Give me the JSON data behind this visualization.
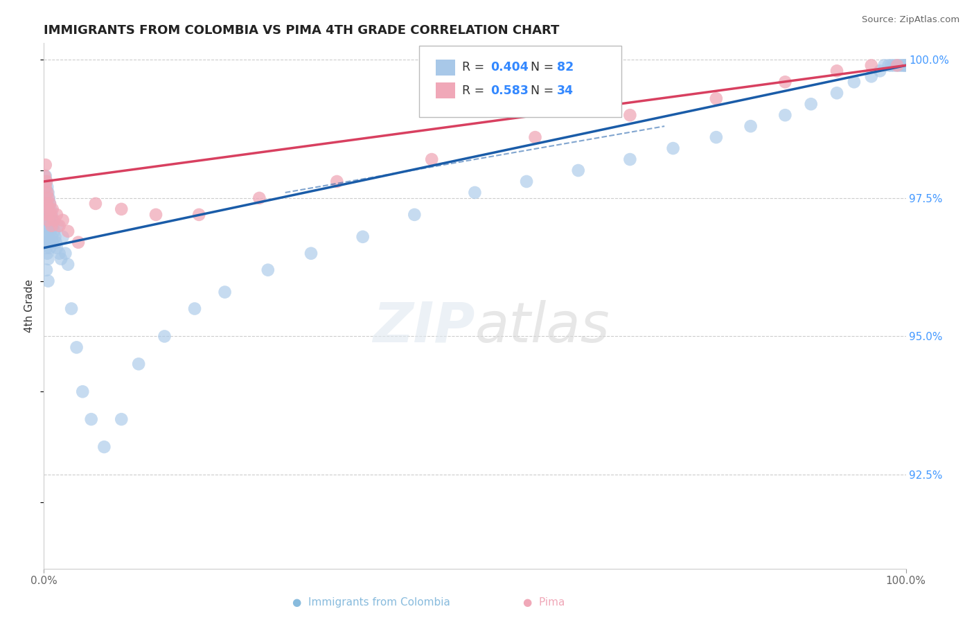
{
  "title": "IMMIGRANTS FROM COLOMBIA VS PIMA 4TH GRADE CORRELATION CHART",
  "source": "Source: ZipAtlas.com",
  "ylabel": "4th Grade",
  "xlim": [
    0.0,
    1.0
  ],
  "ylim": [
    0.908,
    1.003
  ],
  "yticks": [
    0.925,
    0.95,
    0.975,
    1.0
  ],
  "ytick_labels": [
    "92.5%",
    "95.0%",
    "97.5%",
    "100.0%"
  ],
  "series1_color": "#a8c8e8",
  "series2_color": "#f0a8b8",
  "line1_color": "#1a5ca8",
  "line2_color": "#d84060",
  "legend_r1": "0.404",
  "legend_n1": "82",
  "legend_r2": "0.583",
  "legend_n2": "34",
  "watermark": "ZIPatlas",
  "blue_scatter_x": [
    0.001,
    0.001,
    0.001,
    0.002,
    0.002,
    0.002,
    0.002,
    0.003,
    0.003,
    0.003,
    0.003,
    0.003,
    0.004,
    0.004,
    0.004,
    0.004,
    0.005,
    0.005,
    0.005,
    0.005,
    0.005,
    0.006,
    0.006,
    0.006,
    0.007,
    0.007,
    0.007,
    0.008,
    0.008,
    0.009,
    0.009,
    0.01,
    0.01,
    0.011,
    0.012,
    0.013,
    0.014,
    0.015,
    0.016,
    0.018,
    0.02,
    0.022,
    0.025,
    0.028,
    0.032,
    0.038,
    0.045,
    0.055,
    0.07,
    0.09,
    0.11,
    0.14,
    0.175,
    0.21,
    0.26,
    0.31,
    0.37,
    0.43,
    0.5,
    0.56,
    0.62,
    0.68,
    0.73,
    0.78,
    0.82,
    0.86,
    0.89,
    0.92,
    0.94,
    0.96,
    0.97,
    0.975,
    0.98,
    0.983,
    0.986,
    0.989,
    0.992,
    0.994,
    0.996,
    0.998,
    0.999,
    1.0
  ],
  "blue_scatter_y": [
    0.976,
    0.972,
    0.968,
    0.979,
    0.975,
    0.971,
    0.967,
    0.978,
    0.974,
    0.97,
    0.966,
    0.962,
    0.977,
    0.973,
    0.969,
    0.965,
    0.976,
    0.972,
    0.968,
    0.964,
    0.96,
    0.975,
    0.971,
    0.967,
    0.974,
    0.97,
    0.966,
    0.973,
    0.969,
    0.972,
    0.968,
    0.971,
    0.967,
    0.97,
    0.969,
    0.968,
    0.967,
    0.966,
    0.97,
    0.965,
    0.964,
    0.968,
    0.965,
    0.963,
    0.955,
    0.948,
    0.94,
    0.935,
    0.93,
    0.935,
    0.945,
    0.95,
    0.955,
    0.958,
    0.962,
    0.965,
    0.968,
    0.972,
    0.976,
    0.978,
    0.98,
    0.982,
    0.984,
    0.986,
    0.988,
    0.99,
    0.992,
    0.994,
    0.996,
    0.997,
    0.998,
    0.999,
    0.999,
    0.999,
    0.999,
    0.999,
    0.999,
    0.999,
    0.999,
    0.999,
    0.999,
    0.999
  ],
  "pink_scatter_x": [
    0.001,
    0.002,
    0.002,
    0.003,
    0.003,
    0.004,
    0.004,
    0.005,
    0.005,
    0.006,
    0.007,
    0.008,
    0.009,
    0.01,
    0.012,
    0.015,
    0.018,
    0.022,
    0.028,
    0.04,
    0.06,
    0.09,
    0.13,
    0.18,
    0.25,
    0.34,
    0.45,
    0.57,
    0.68,
    0.78,
    0.86,
    0.92,
    0.96,
    0.99
  ],
  "pink_scatter_y": [
    0.979,
    0.981,
    0.977,
    0.978,
    0.974,
    0.976,
    0.972,
    0.975,
    0.971,
    0.973,
    0.974,
    0.972,
    0.97,
    0.973,
    0.971,
    0.972,
    0.97,
    0.971,
    0.969,
    0.967,
    0.974,
    0.973,
    0.972,
    0.972,
    0.975,
    0.978,
    0.982,
    0.986,
    0.99,
    0.993,
    0.996,
    0.998,
    0.999,
    0.999
  ],
  "blue_line_x0": 0.0,
  "blue_line_y0": 0.966,
  "blue_line_x1": 1.0,
  "blue_line_y1": 0.999,
  "pink_line_x0": 0.0,
  "pink_line_y0": 0.978,
  "pink_line_x1": 1.0,
  "pink_line_y1": 0.999,
  "dash_line_x0": 0.28,
  "dash_line_y0": 0.976,
  "dash_line_x1": 0.72,
  "dash_line_y1": 0.988
}
